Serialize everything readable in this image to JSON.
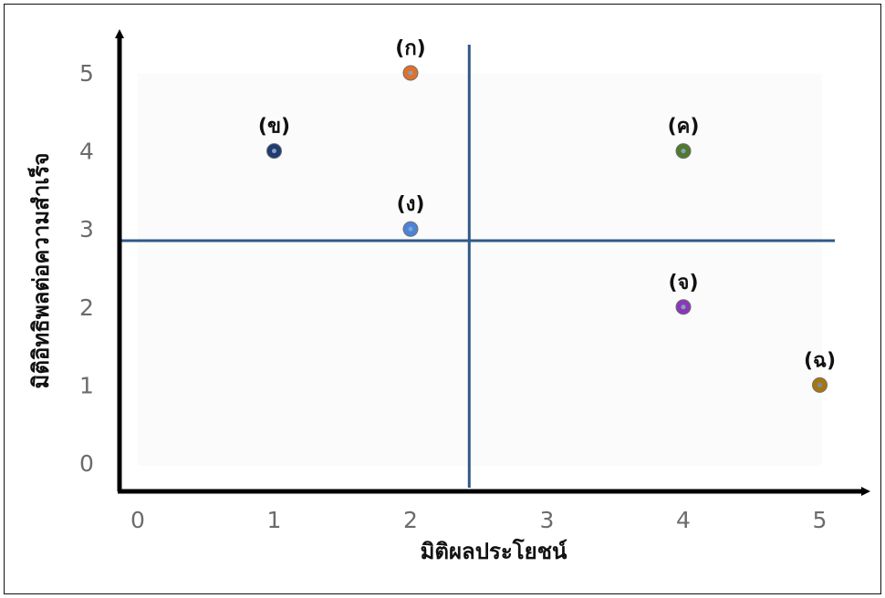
{
  "chart_data": {
    "type": "scatter",
    "xlabel": "มิติผลประโยชน์",
    "ylabel": "มิติอิทธิพลต่อความสำเร็จ",
    "xlim": [
      0,
      5
    ],
    "ylim": [
      0,
      5
    ],
    "x_ticks": [
      "0",
      "1",
      "2",
      "3",
      "4",
      "5"
    ],
    "y_ticks": [
      "0",
      "1",
      "2",
      "3",
      "4",
      "5"
    ],
    "grid": false,
    "reference_lines": {
      "x": 2.43,
      "y": 2.85,
      "color": "#2e5a85"
    },
    "axis_color": "#000000",
    "points": [
      {
        "label": "(ก)",
        "x": 2,
        "y": 5,
        "fill": "#e0712b",
        "inner": "#8a9fbf"
      },
      {
        "label": "(ข)",
        "x": 1,
        "y": 4,
        "fill": "#1f3b72",
        "inner": "#8a9fbf"
      },
      {
        "label": "(ค)",
        "x": 4,
        "y": 4,
        "fill": "#4f7a2f",
        "inner": "#8a9fbf"
      },
      {
        "label": "(ง)",
        "x": 2,
        "y": 3,
        "fill": "#4d83d6",
        "inner": "#7aa4e0"
      },
      {
        "label": "(จ)",
        "x": 4,
        "y": 2,
        "fill": "#8a38b8",
        "inner": "#8a9fbf"
      },
      {
        "label": "(ฉ)",
        "x": 5,
        "y": 1,
        "fill": "#a8770b",
        "inner": "#6f8fb8"
      }
    ]
  }
}
